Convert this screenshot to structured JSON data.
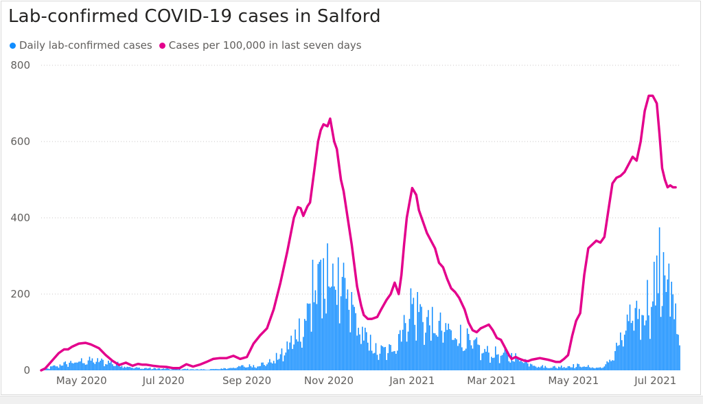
{
  "chart_data": {
    "type": "bar+line",
    "title": "Lab-confirmed COVID-19 cases in Salford",
    "xlabel": "",
    "ylabel": "",
    "ylim": [
      0,
      800
    ],
    "yticks": [
      0,
      200,
      400,
      600,
      800
    ],
    "xtick_labels": [
      "May 2020",
      "Jul 2020",
      "Sep 2020",
      "Nov 2020",
      "Jan 2021",
      "Mar 2021",
      "May 2021",
      "Jul 2021"
    ],
    "x_range_days": [
      0,
      475
    ],
    "xtick_days": [
      30,
      91,
      153,
      214,
      276,
      335,
      396,
      457
    ],
    "grid": "horizontal dotted",
    "legend_position": "top-left",
    "series": [
      {
        "name": "Daily lab-confirmed cases",
        "kind": "bar",
        "color": "#118DFF",
        "profile_days": [
          0,
          10,
          20,
          30,
          40,
          50,
          60,
          70,
          80,
          90,
          100,
          110,
          120,
          130,
          140,
          150,
          160,
          170,
          180,
          190,
          200,
          205,
          210,
          215,
          220,
          230,
          240,
          250,
          260,
          265,
          270,
          275,
          280,
          290,
          300,
          310,
          320,
          330,
          340,
          350,
          360,
          370,
          380,
          390,
          400,
          410,
          415,
          420,
          425,
          430,
          435,
          440,
          445,
          450,
          455,
          460,
          465,
          470,
          475
        ],
        "profile_values": [
          1,
          10,
          18,
          23,
          24,
          20,
          13,
          6,
          5,
          4,
          3,
          3,
          2,
          3,
          6,
          10,
          12,
          20,
          40,
          90,
          150,
          185,
          205,
          220,
          210,
          160,
          85,
          45,
          50,
          80,
          120,
          160,
          150,
          110,
          100,
          90,
          65,
          45,
          40,
          35,
          25,
          10,
          8,
          10,
          12,
          8,
          6,
          12,
          35,
          65,
          100,
          130,
          150,
          165,
          195,
          205,
          190,
          150,
          110
        ],
        "peaks": [
          {
            "day": 213,
            "value": 333
          },
          {
            "day": 217,
            "value": 280
          },
          {
            "day": 208,
            "value": 290
          },
          {
            "day": 202,
            "value": 290
          },
          {
            "day": 460,
            "value": 375
          },
          {
            "day": 463,
            "value": 310
          },
          {
            "day": 467,
            "value": 280
          }
        ]
      },
      {
        "name": "Cases per 100,000 in last seven days",
        "kind": "line",
        "color": "#E3008C",
        "x_days": [
          0,
          3,
          8,
          13,
          17,
          20,
          23,
          28,
          33,
          37,
          43,
          48,
          53,
          58,
          63,
          68,
          72,
          75,
          78,
          83,
          88,
          93,
          98,
          103,
          108,
          113,
          118,
          123,
          128,
          133,
          138,
          143,
          148,
          153,
          158,
          163,
          168,
          173,
          178,
          183,
          188,
          191,
          193,
          195,
          198,
          200,
          203,
          206,
          208,
          210,
          213,
          215,
          218,
          220,
          223,
          225,
          228,
          231,
          235,
          238,
          240,
          243,
          246,
          250,
          253,
          257,
          260,
          263,
          266,
          268,
          270,
          272,
          274,
          276,
          279,
          281,
          283,
          285,
          287,
          290,
          293,
          296,
          299,
          302,
          305,
          308,
          311,
          315,
          318,
          321,
          324,
          327,
          330,
          333,
          336,
          339,
          342,
          345,
          348,
          350,
          353,
          356,
          359,
          362,
          365,
          368,
          371,
          374,
          377,
          380,
          383,
          386,
          389,
          392,
          395,
          398,
          401,
          404,
          407,
          410,
          413,
          416,
          419,
          422,
          425,
          428,
          431,
          434,
          437,
          440,
          443,
          446,
          449,
          452,
          455,
          458,
          460,
          462,
          464,
          466,
          468,
          470,
          472
        ],
        "values": [
          0,
          5,
          25,
          45,
          55,
          55,
          62,
          70,
          72,
          68,
          58,
          40,
          25,
          14,
          20,
          12,
          17,
          15,
          15,
          12,
          10,
          9,
          6,
          6,
          16,
          10,
          15,
          22,
          30,
          32,
          32,
          38,
          30,
          35,
          70,
          92,
          110,
          160,
          230,
          310,
          400,
          428,
          425,
          405,
          430,
          440,
          520,
          600,
          630,
          645,
          640,
          660,
          600,
          580,
          500,
          470,
          400,
          330,
          220,
          170,
          145,
          135,
          135,
          140,
          160,
          185,
          200,
          230,
          200,
          250,
          330,
          400,
          440,
          478,
          460,
          420,
          400,
          380,
          360,
          340,
          320,
          282,
          270,
          240,
          215,
          205,
          190,
          160,
          125,
          105,
          100,
          110,
          115,
          120,
          105,
          85,
          80,
          60,
          40,
          30,
          35,
          30,
          26,
          24,
          28,
          30,
          32,
          30,
          28,
          25,
          22,
          22,
          30,
          40,
          90,
          130,
          150,
          250,
          320,
          330,
          340,
          335,
          350,
          420,
          490,
          505,
          510,
          520,
          540,
          560,
          550,
          600,
          680,
          720,
          720,
          700,
          620,
          530,
          500,
          480,
          485,
          480,
          480
        ]
      }
    ]
  }
}
